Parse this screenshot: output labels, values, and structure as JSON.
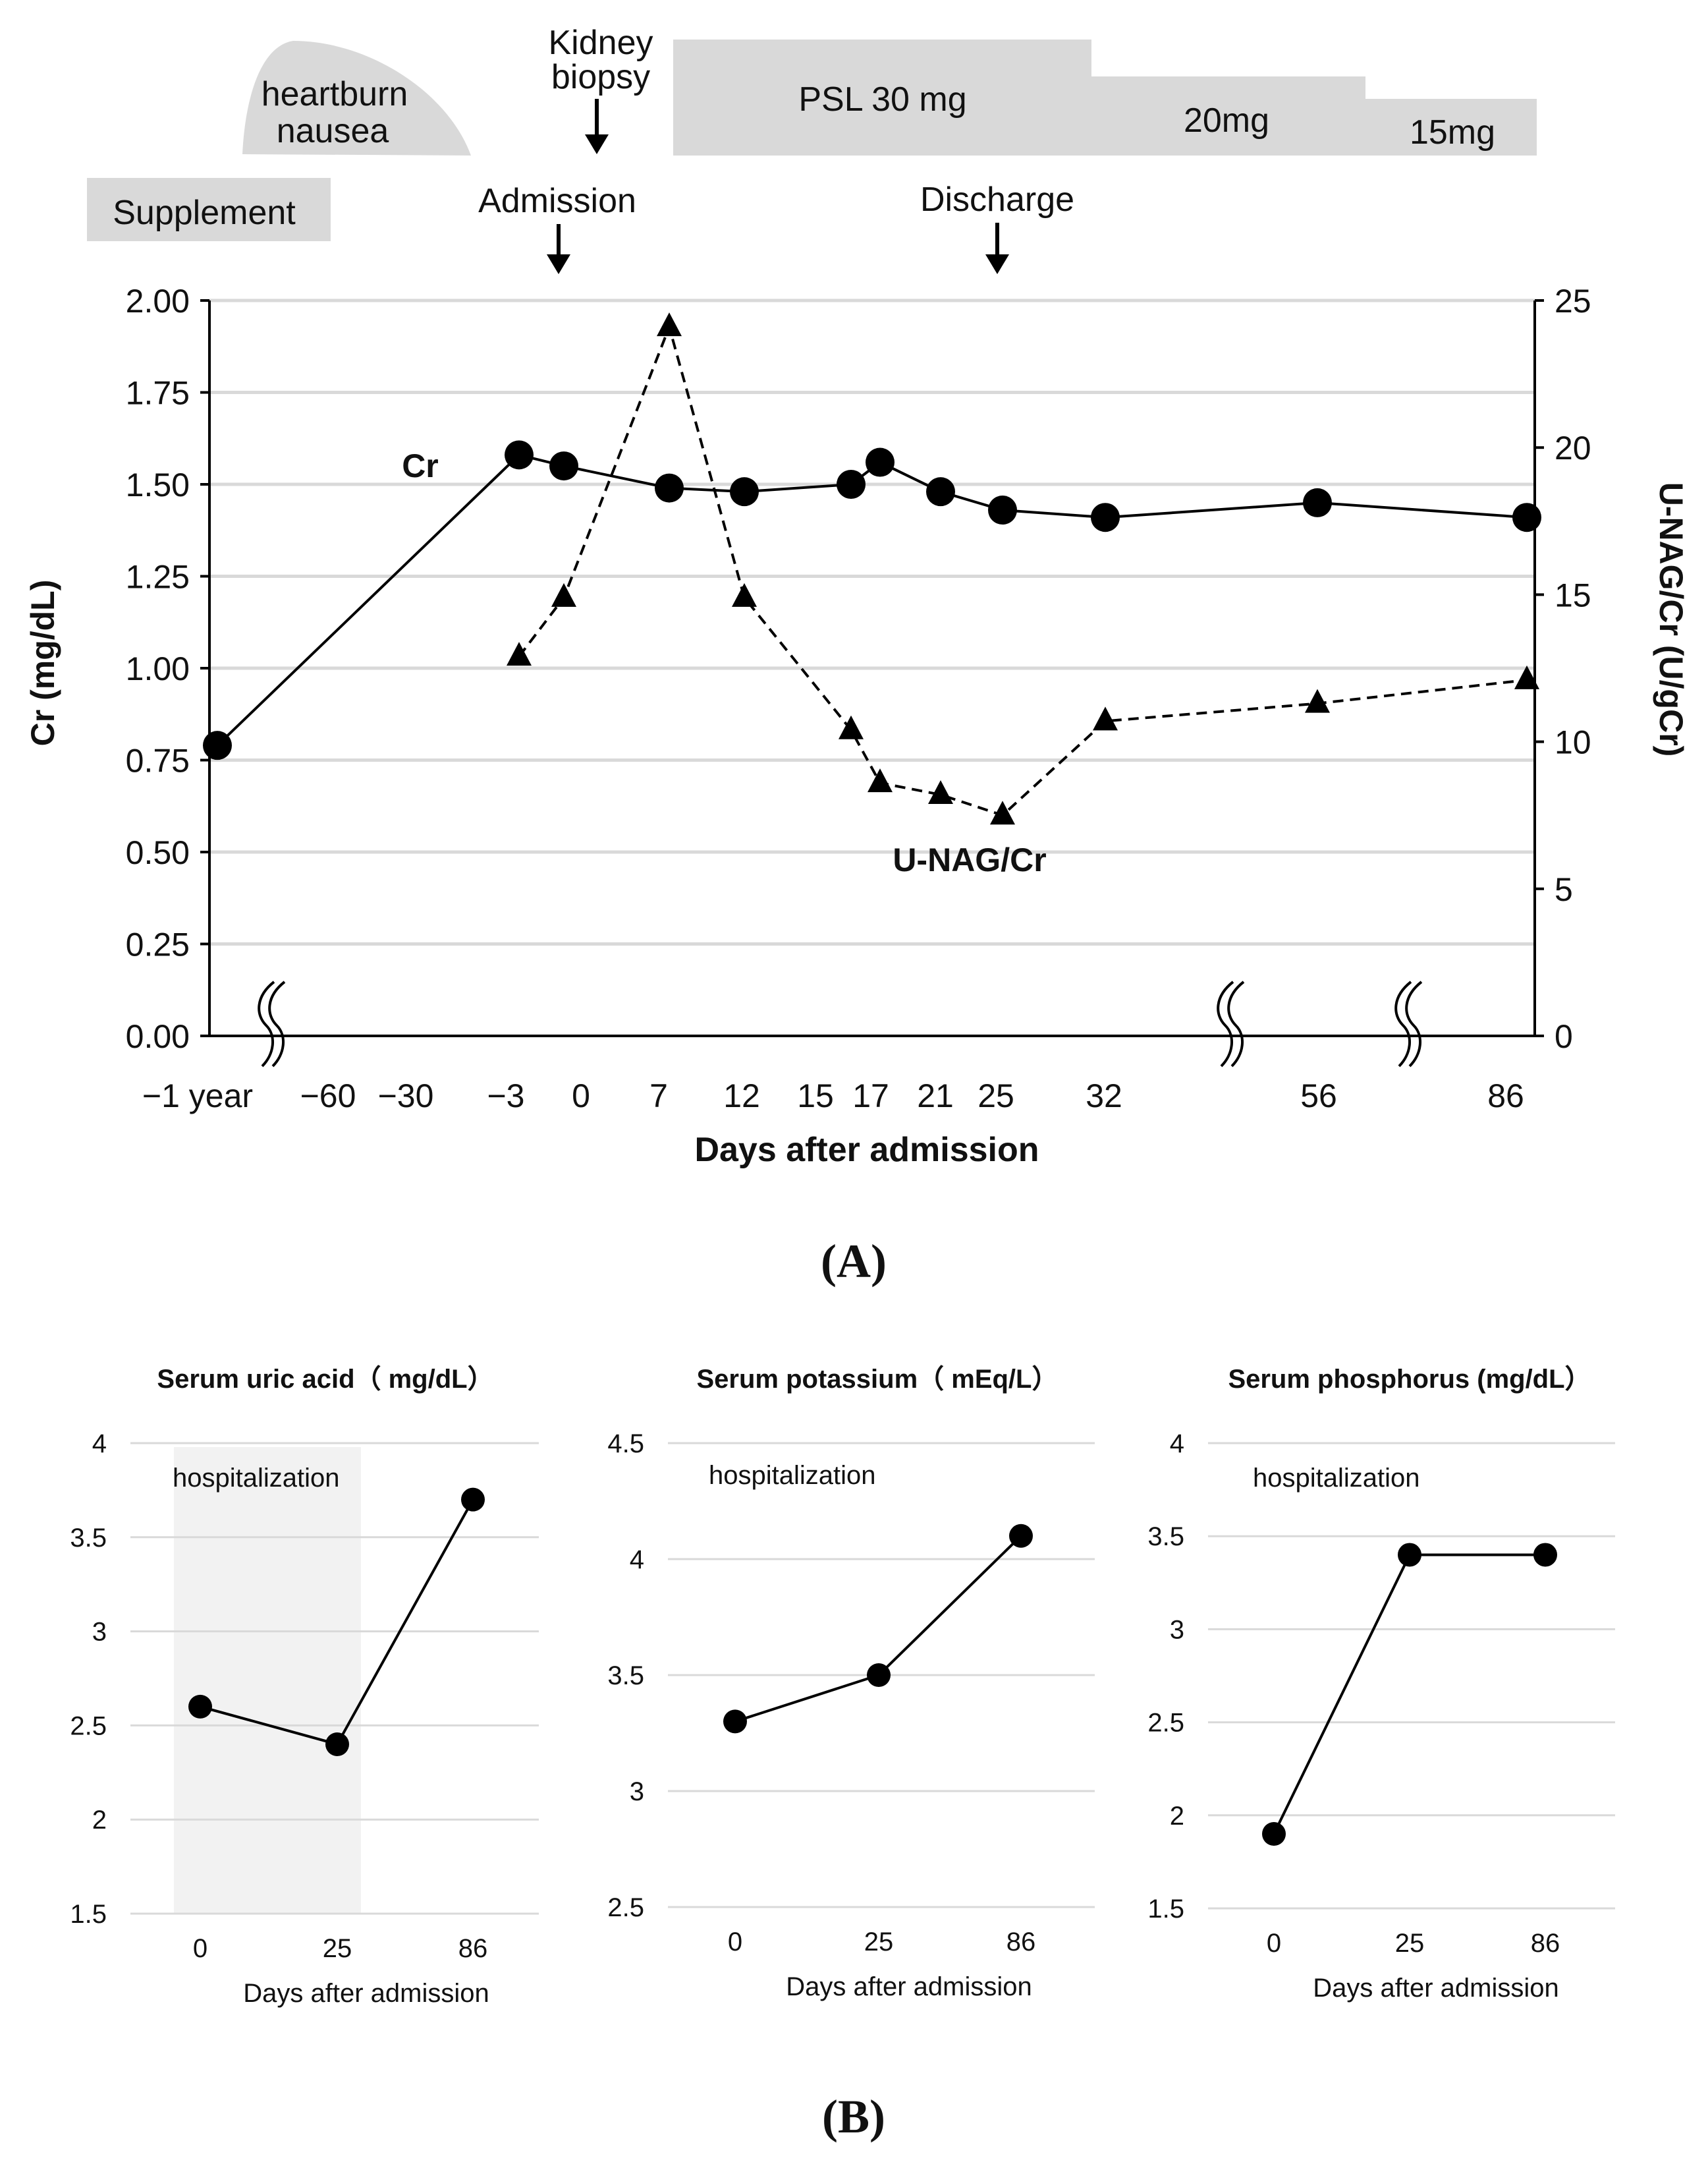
{
  "panel_a": {
    "label": "(A)",
    "treatments": {
      "supplement": "Supplement",
      "symptom_line1": "heartburn",
      "symptom_line2": "nausea",
      "psl30": "PSL 30 mg",
      "psl20": "20mg",
      "psl15": "15mg"
    },
    "events": {
      "biopsy_line1": "Kidney",
      "biopsy_line2": "biopsy",
      "admission": "Admission",
      "discharge": "Discharge"
    }
  },
  "panel_b": {
    "label": "(B)"
  },
  "colors": {
    "band_fill": "#d9d9d9",
    "hospital_fill": "#f2f2f2",
    "gridline": "#d9d9d9",
    "ink": "#000000"
  },
  "chart_data": [
    {
      "type": "line",
      "title": "",
      "xlabel": "Days after admission",
      "ylabel": "Cr (mg/dL)",
      "y2label": "U-NAG/Cr (U/gCr)",
      "ylim": [
        0,
        2
      ],
      "y2lim": [
        0,
        25
      ],
      "y_ticks": [
        "0.00",
        "0.25",
        "0.50",
        "0.75",
        "1.00",
        "1.25",
        "1.50",
        "1.75",
        "2.00"
      ],
      "y2_ticks": [
        "0",
        "5",
        "10",
        "15",
        "20",
        "25"
      ],
      "x_tick_labels": [
        "−1 year",
        "−60",
        "−30",
        "−3",
        "0",
        "7",
        "12",
        "15",
        "17",
        "21",
        "25",
        "32",
        "56",
        "86"
      ],
      "axis_breaks": true,
      "series": [
        {
          "name": "Cr",
          "label": "Cr",
          "axis": "left",
          "marker": "circle",
          "line": "solid",
          "x": [
            "−1 year",
            "−3",
            "0",
            "7",
            "12",
            "17",
            "18",
            "21",
            "25",
            "32",
            "56",
            "86"
          ],
          "values": [
            0.79,
            1.58,
            1.55,
            1.49,
            1.48,
            1.5,
            1.56,
            1.48,
            1.43,
            1.41,
            1.45,
            1.41
          ]
        },
        {
          "name": "U-NAG/Cr",
          "label": "U-NAG/Cr",
          "axis": "right",
          "marker": "triangle",
          "line": "dashed",
          "x": [
            "−3",
            "0",
            "7",
            "12",
            "17",
            "18",
            "21",
            "25",
            "32",
            "56",
            "86"
          ],
          "values": [
            12.9,
            14.9,
            24.1,
            14.9,
            10.4,
            8.6,
            8.2,
            7.5,
            10.7,
            11.3,
            12.1
          ]
        }
      ]
    },
    {
      "type": "line",
      "title": "Serum uric acid（ mg/dL）",
      "xlabel": "Days after admission",
      "ylabel": "",
      "annotation": "hospitalization",
      "ylim": [
        1.5,
        4
      ],
      "y_ticks": [
        "1.5",
        "2",
        "2.5",
        "3",
        "3.5",
        "4"
      ],
      "categories": [
        "0",
        "25",
        "86"
      ],
      "values": [
        2.6,
        2.4,
        3.7
      ]
    },
    {
      "type": "line",
      "title": "Serum potassium（ mEq/L）",
      "xlabel": "Days after admission",
      "ylabel": "",
      "annotation": "hospitalization",
      "ylim": [
        2.5,
        4.5
      ],
      "y_ticks": [
        "2.5",
        "3",
        "3.5",
        "4",
        "4.5"
      ],
      "categories": [
        "0",
        "25",
        "86"
      ],
      "values": [
        3.3,
        3.5,
        4.1
      ]
    },
    {
      "type": "line",
      "title": "Serum phosphorus  (mg/dL）",
      "xlabel": "Days after admission",
      "ylabel": "",
      "annotation": "hospitalization",
      "ylim": [
        1.5,
        4
      ],
      "y_ticks": [
        "1.5",
        "2",
        "2.5",
        "3",
        "3.5",
        "4"
      ],
      "categories": [
        "0",
        "25",
        "86"
      ],
      "values": [
        1.9,
        3.4,
        3.4
      ]
    }
  ]
}
